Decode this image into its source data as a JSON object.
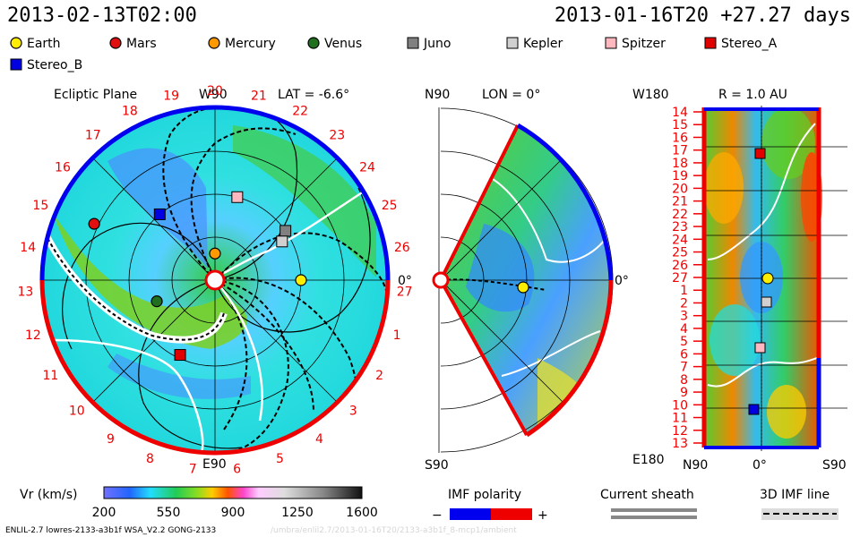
{
  "header": {
    "datetime_left": "2013-02-13T02:00",
    "datetime_right": "2013-01-16T20 +27.27 days"
  },
  "legend": {
    "items": [
      {
        "name": "Earth",
        "shape": "circle",
        "color": "#ffee00"
      },
      {
        "name": "Mars",
        "shape": "circle",
        "color": "#e01010"
      },
      {
        "name": "Mercury",
        "shape": "circle",
        "color": "#ff9900"
      },
      {
        "name": "Venus",
        "shape": "circle",
        "color": "#207020"
      },
      {
        "name": "Juno",
        "shape": "square",
        "color": "#808080"
      },
      {
        "name": "Kepler",
        "shape": "square",
        "color": "#d0d0d0"
      },
      {
        "name": "Spitzer",
        "shape": "square",
        "color": "#ffb8c0"
      },
      {
        "name": "Stereo_A",
        "shape": "square",
        "color": "#e00000"
      },
      {
        "name": "Stereo_B",
        "shape": "square",
        "color": "#0000e0"
      }
    ]
  },
  "panels": {
    "ecliptic": {
      "title": "Ecliptic Plane",
      "top_label": "W90",
      "bottom_label": "E90",
      "right_label": "0°",
      "lat_label": "LAT = -6.6°",
      "carrington_ticks": [
        "20",
        "21",
        "22",
        "23",
        "24",
        "25",
        "26",
        "27",
        "1",
        "2",
        "3",
        "4",
        "5",
        "6",
        "7",
        "8",
        "9",
        "10",
        "11",
        "12",
        "13",
        "14",
        "15",
        "16",
        "17",
        "18",
        "19"
      ]
    },
    "meridional": {
      "top_label": "N90",
      "bottom_label": "S90",
      "right_label": "0°",
      "lon_label": "LON = 0°"
    },
    "synoptic": {
      "title": "R = 1.0 AU",
      "top_left_label": "W180",
      "bottom_left_label": "E180",
      "x_labels": [
        "N90",
        "0°",
        "S90"
      ],
      "y_ticks": [
        "14",
        "15",
        "16",
        "17",
        "18",
        "19",
        "20",
        "21",
        "22",
        "23",
        "24",
        "25",
        "26",
        "27",
        "1",
        "2",
        "3",
        "4",
        "5",
        "6",
        "7",
        "8",
        "9",
        "10",
        "11",
        "12",
        "13"
      ]
    }
  },
  "colorbar": {
    "label": "Vr (km/s)",
    "ticks": [
      "200",
      "550",
      "900",
      "1250",
      "1600"
    ]
  },
  "imf": {
    "label": "IMF polarity",
    "minus": "−",
    "plus": "+",
    "neg_color": "#0000ee",
    "pos_color": "#ee0000"
  },
  "current_sheath": {
    "label": "Current sheath"
  },
  "imf_line": {
    "label": "3D IMF line"
  },
  "footer": {
    "model_info": "ENLIL-2.7 lowres-2133-a3b1f WSA_V2.2 GONG-2133",
    "watermark": "/umbra/enlil2.7/2013-01-16T20/2133-a3b1f_8-mcp1/ambient"
  },
  "chart_data": [
    {
      "type": "heatmap",
      "title": "Ecliptic Plane",
      "variable": "Vr (km/s)",
      "range": [
        200,
        1600
      ],
      "planets_relative_bearing": {
        "Earth": 0,
        "Mercury": 270,
        "Venus": 160,
        "Mars": 205,
        "Stereo_A": 115,
        "Stereo_B": 230,
        "Juno": 325,
        "Kepler": 330,
        "Spitzer": 285
      },
      "planets_radius_au": {
        "Earth": 1.0,
        "Mercury": 0.31,
        "Venus": 0.72,
        "Mars": 1.55,
        "Stereo_A": 0.96,
        "Stereo_B": 1.0,
        "Juno": 1.0,
        "Kepler": 0.9,
        "Spitzer": 1.0
      }
    },
    {
      "type": "heatmap",
      "title": "Meridional plane LON = 0°",
      "variable": "Vr (km/s)",
      "range": [
        200,
        1600
      ]
    },
    {
      "type": "heatmap",
      "title": "R = 1.0 AU",
      "variable": "Vr (km/s)",
      "range": [
        200,
        1600
      ],
      "xlabel_ticks": [
        "N90",
        "0°",
        "S90"
      ]
    }
  ]
}
